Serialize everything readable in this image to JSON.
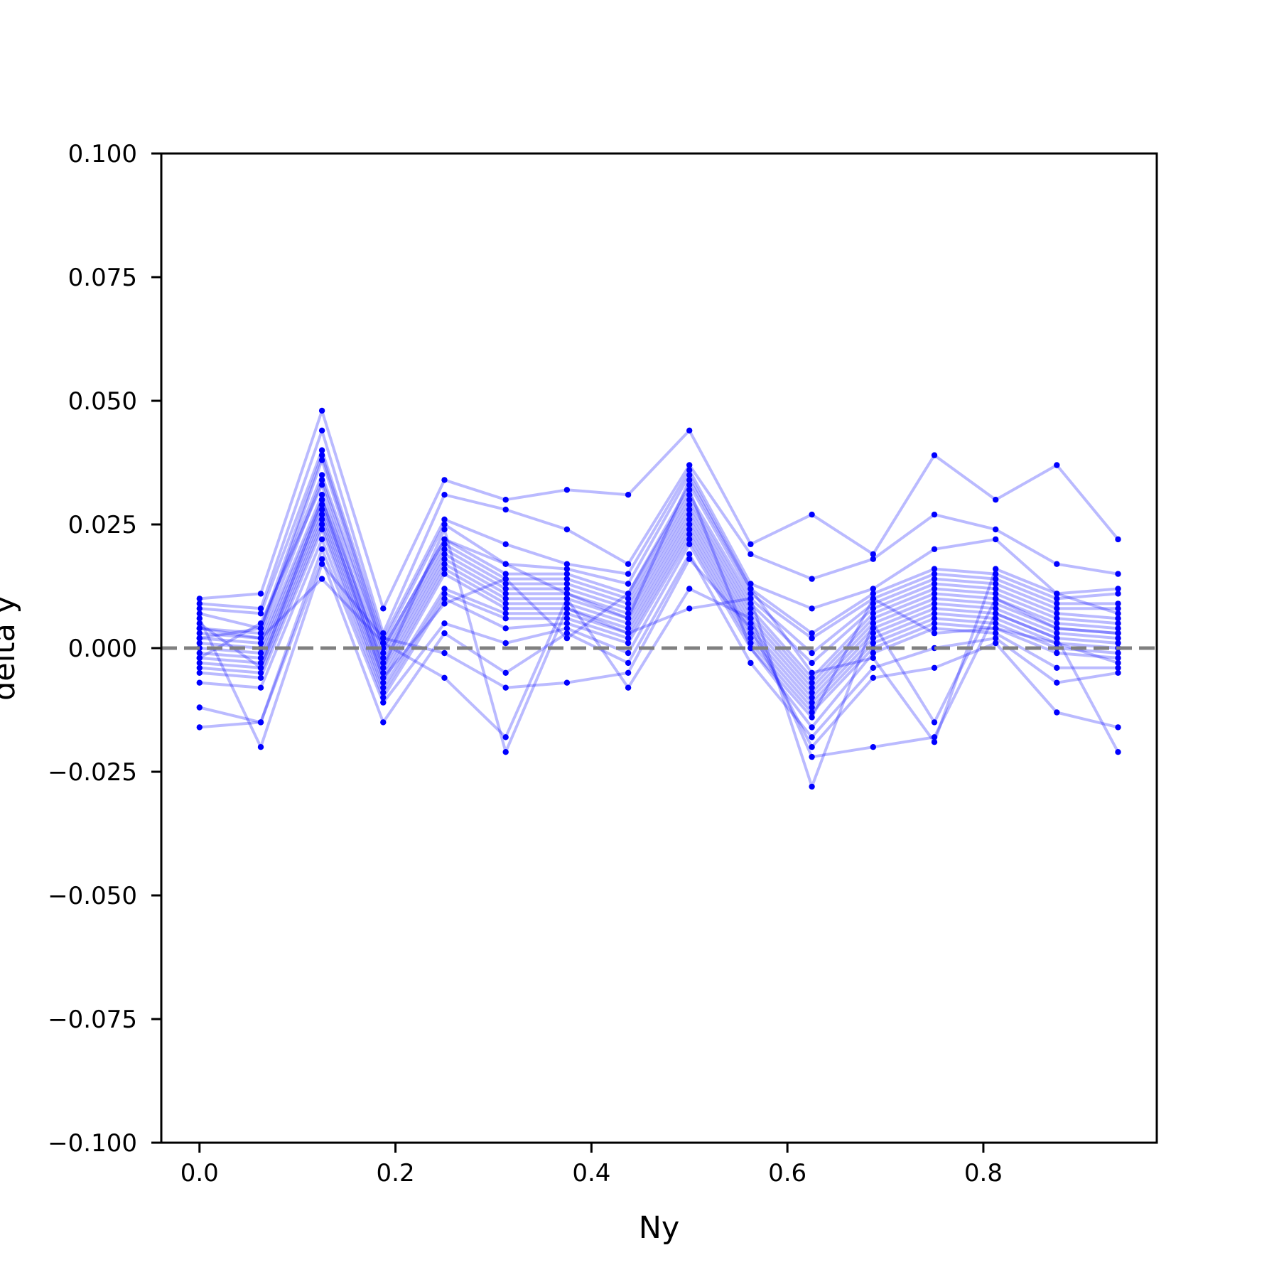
{
  "chart_data": {
    "type": "line",
    "xlabel": "Ny",
    "ylabel": "delta y",
    "xlim": [
      -0.039,
      0.977
    ],
    "ylim": [
      -0.1,
      0.1
    ],
    "x_ticks": [
      0.0,
      0.2,
      0.4,
      0.6,
      0.8
    ],
    "x_tick_labels": [
      "0.0",
      "0.2",
      "0.4",
      "0.6",
      "0.8"
    ],
    "y_ticks": [
      0.1,
      0.075,
      0.05,
      0.025,
      0.0,
      -0.025,
      -0.05,
      -0.075,
      -0.1
    ],
    "y_tick_labels": [
      "0.100",
      "0.075",
      "0.050",
      "0.025",
      "0.000",
      "−0.025",
      "−0.050",
      "−0.075",
      "−0.100"
    ],
    "reference_line": {
      "y": 0.0,
      "style": "dashed",
      "color": "#808080"
    },
    "grid": false,
    "legend": "none",
    "series_color": "#0000ff",
    "x": [
      0.0,
      0.0625,
      0.125,
      0.1875,
      0.25,
      0.3125,
      0.375,
      0.4375,
      0.5,
      0.5625,
      0.625,
      0.6875,
      0.75,
      0.8125,
      0.875,
      0.9375
    ],
    "series": [
      {
        "values": [
          0.01,
          0.011,
          0.048,
          0.008,
          0.034,
          0.03,
          0.032,
          0.031,
          0.044,
          0.021,
          0.027,
          0.019,
          0.039,
          0.03,
          0.037,
          0.022
        ]
      },
      {
        "values": [
          0.009,
          0.008,
          0.044,
          0.003,
          0.031,
          0.028,
          0.024,
          0.017,
          0.037,
          0.019,
          0.014,
          0.018,
          0.027,
          0.024,
          0.017,
          0.015
        ]
      },
      {
        "values": [
          0.008,
          0.007,
          0.04,
          0.002,
          0.026,
          0.021,
          0.017,
          0.015,
          0.036,
          0.013,
          0.008,
          0.012,
          0.02,
          0.022,
          0.011,
          0.012
        ]
      },
      {
        "values": [
          0.007,
          0.004,
          0.039,
          0.001,
          0.025,
          0.017,
          0.016,
          0.013,
          0.035,
          0.012,
          0.003,
          0.011,
          0.016,
          0.015,
          0.01,
          0.011
        ]
      },
      {
        "values": [
          0.004,
          0.003,
          0.038,
          0.0,
          0.022,
          0.015,
          0.015,
          0.011,
          0.033,
          0.011,
          0.002,
          0.01,
          0.015,
          0.014,
          0.009,
          0.009
        ]
      },
      {
        "values": [
          0.003,
          0.002,
          0.034,
          -0.001,
          0.021,
          0.014,
          0.014,
          0.01,
          0.031,
          0.01,
          -0.001,
          0.009,
          0.014,
          0.013,
          0.008,
          0.008
        ]
      },
      {
        "values": [
          0.002,
          0.001,
          0.031,
          -0.002,
          0.02,
          0.013,
          0.013,
          0.009,
          0.03,
          0.009,
          -0.003,
          0.008,
          0.013,
          0.012,
          0.007,
          0.006
        ]
      },
      {
        "values": [
          0.001,
          0.0,
          0.03,
          -0.003,
          0.019,
          0.012,
          0.012,
          0.008,
          0.029,
          0.008,
          -0.006,
          0.007,
          0.012,
          0.011,
          0.006,
          0.005
        ]
      },
      {
        "values": [
          0.0,
          -0.001,
          0.029,
          -0.004,
          0.018,
          0.011,
          0.011,
          0.007,
          0.028,
          0.007,
          -0.007,
          0.006,
          0.011,
          0.01,
          0.005,
          0.004
        ]
      },
      {
        "values": [
          -0.001,
          -0.002,
          0.028,
          -0.005,
          0.017,
          0.01,
          0.01,
          0.006,
          0.027,
          0.006,
          -0.008,
          0.005,
          0.01,
          0.009,
          0.004,
          0.003
        ]
      },
      {
        "values": [
          -0.002,
          -0.003,
          0.027,
          -0.006,
          0.016,
          0.009,
          0.009,
          0.005,
          0.026,
          0.005,
          -0.009,
          0.004,
          0.009,
          0.008,
          0.003,
          0.002
        ]
      },
      {
        "values": [
          -0.003,
          -0.004,
          0.026,
          -0.007,
          0.015,
          0.008,
          0.008,
          0.004,
          0.025,
          0.004,
          -0.01,
          0.003,
          0.008,
          0.007,
          0.002,
          0.001
        ]
      },
      {
        "values": [
          -0.004,
          -0.005,
          0.025,
          -0.008,
          0.012,
          0.007,
          0.007,
          0.003,
          0.024,
          0.003,
          -0.011,
          0.002,
          0.007,
          0.006,
          0.001,
          0.0
        ]
      },
      {
        "values": [
          -0.005,
          -0.006,
          0.024,
          -0.009,
          0.011,
          0.006,
          0.006,
          0.002,
          0.023,
          0.002,
          -0.012,
          0.001,
          0.006,
          0.005,
          0.0,
          -0.001
        ]
      },
      {
        "values": [
          -0.007,
          -0.008,
          0.022,
          -0.01,
          0.01,
          0.004,
          0.005,
          0.001,
          0.022,
          0.001,
          -0.013,
          0.0,
          0.005,
          0.004,
          -0.001,
          -0.002
        ]
      },
      {
        "values": [
          -0.012,
          -0.015,
          0.02,
          -0.011,
          0.005,
          0.001,
          0.004,
          -0.001,
          0.021,
          0.0,
          -0.016,
          -0.001,
          0.004,
          0.003,
          -0.004,
          -0.004
        ]
      },
      {
        "values": [
          -0.016,
          -0.015,
          0.018,
          -0.015,
          0.003,
          -0.005,
          0.003,
          -0.003,
          0.019,
          -0.003,
          -0.018,
          -0.004,
          0.0,
          0.002,
          -0.007,
          -0.005
        ]
      },
      {
        "values": [
          0.006,
          -0.02,
          0.017,
          0.002,
          -0.001,
          -0.008,
          -0.007,
          -0.005,
          0.018,
          0.004,
          -0.02,
          -0.006,
          -0.004,
          0.001,
          -0.013,
          -0.016
        ]
      },
      {
        "values": [
          0.004,
          0.002,
          0.014,
          0.001,
          -0.006,
          -0.018,
          0.01,
          -0.008,
          0.012,
          0.006,
          -0.022,
          -0.02,
          -0.018,
          0.007,
          0.002,
          -0.021
        ]
      },
      {
        "values": [
          -0.002,
          0.005,
          0.033,
          -0.004,
          0.024,
          -0.021,
          0.008,
          0.003,
          0.008,
          0.01,
          -0.028,
          0.005,
          -0.015,
          0.01,
          0.004,
          0.003
        ]
      },
      {
        "values": [
          0.002,
          0.004,
          0.035,
          0.0,
          0.022,
          0.017,
          0.011,
          0.006,
          0.034,
          0.012,
          -0.005,
          -0.002,
          -0.019,
          0.016,
          0.011,
          0.007
        ]
      },
      {
        "values": [
          0.005,
          -0.004,
          0.03,
          -0.006,
          0.009,
          0.014,
          0.002,
          0.011,
          0.032,
          0.0,
          -0.014,
          0.01,
          0.003,
          0.004,
          0.001,
          -0.003
        ]
      }
    ]
  }
}
